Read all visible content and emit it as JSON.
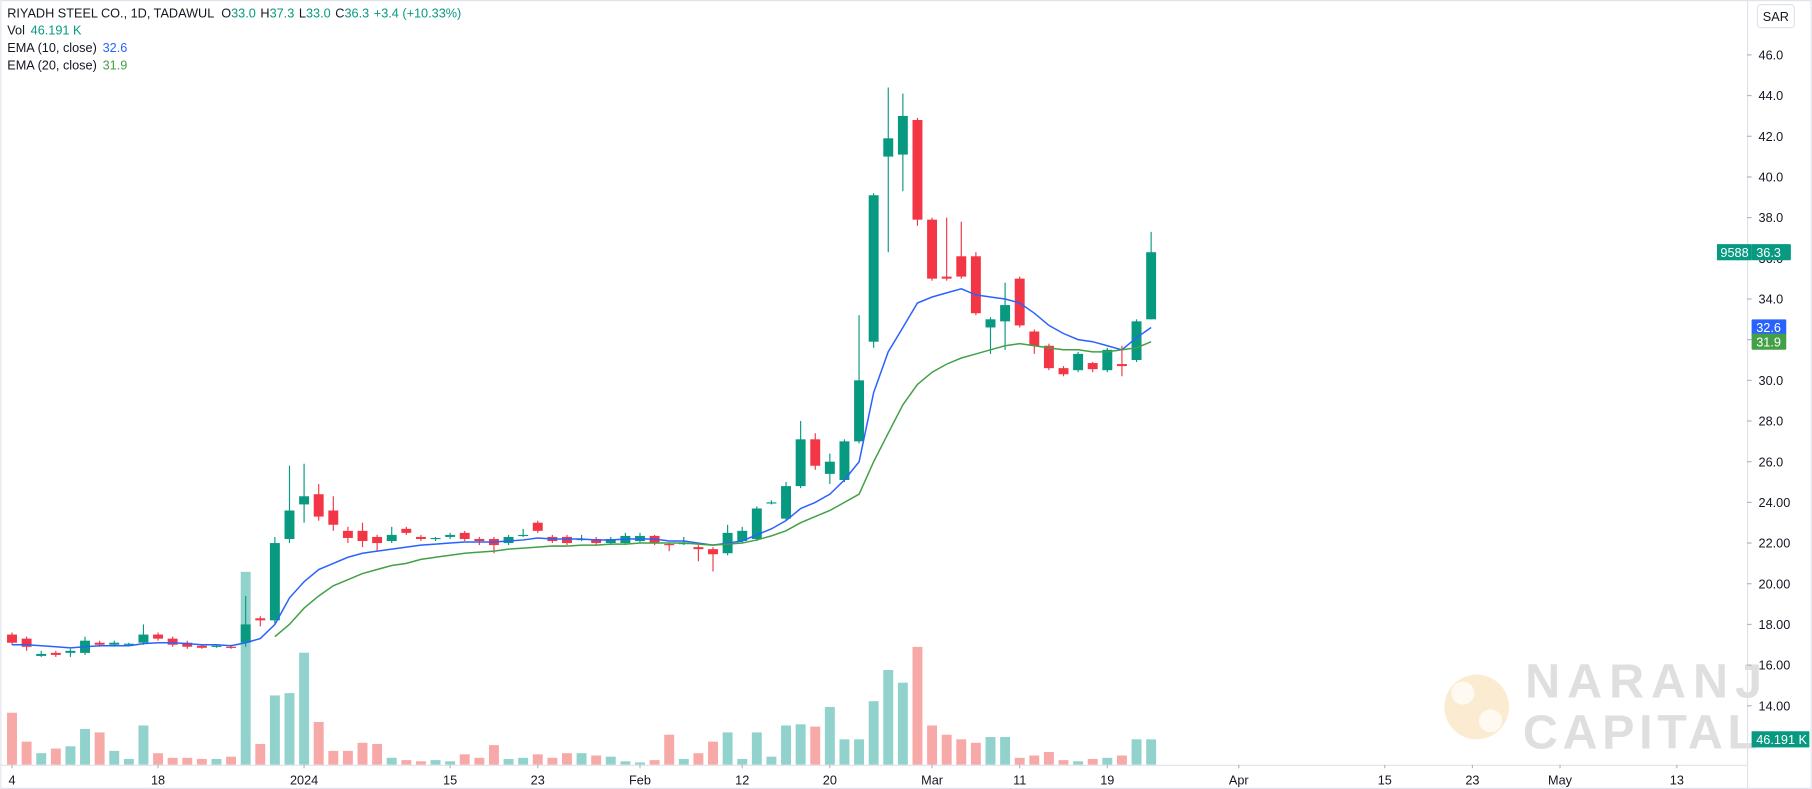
{
  "chart_data": {
    "type": "candlestick",
    "title": "RIYADH STEEL CO., 1D, TADAWUL",
    "ohlc_legend": [
      {
        "key": "O",
        "value": "33.0"
      },
      {
        "key": "H",
        "value": "37.3"
      },
      {
        "key": "L",
        "value": "33.0"
      },
      {
        "key": "C",
        "value": "36.3"
      }
    ],
    "change": "+3.4 (+10.33%)",
    "currency": "SAR",
    "symbol_code": "9588",
    "up_color": "#089981",
    "down_color": "#f23645",
    "x": [
      0,
      1,
      2,
      3,
      4,
      5,
      6,
      7,
      8,
      9,
      10,
      11,
      12,
      13,
      14,
      15,
      16,
      17,
      18,
      19,
      20,
      21,
      22,
      23,
      24,
      25,
      26,
      27,
      28,
      29,
      30,
      31,
      32,
      33,
      34,
      35,
      36,
      37,
      38,
      39,
      40,
      41,
      42,
      43,
      44,
      45,
      46,
      47,
      48,
      49,
      50,
      51,
      52,
      53,
      54,
      55,
      56,
      57,
      58,
      59,
      60,
      61,
      62,
      63,
      64,
      65,
      66,
      67,
      68,
      69,
      70,
      71,
      72,
      73,
      74,
      75,
      76,
      77,
      78
    ],
    "open": [
      17.5,
      17.3,
      16.45,
      16.6,
      16.6,
      16.6,
      17.1,
      17.0,
      17.0,
      17.1,
      17.5,
      17.3,
      17.1,
      16.95,
      16.9,
      16.9,
      17.1,
      18.3,
      18.2,
      22.2,
      23.9,
      24.4,
      23.6,
      22.6,
      22.6,
      22.3,
      22.1,
      22.7,
      22.3,
      22.2,
      22.3,
      22.5,
      22.2,
      22.2,
      22.0,
      22.35,
      23.0,
      22.3,
      22.3,
      22.15,
      22.2,
      22.0,
      22.0,
      22.1,
      22.35,
      21.95,
      21.95,
      21.8,
      21.7,
      21.5,
      22.1,
      22.2,
      23.95,
      23.2,
      24.8,
      27.1,
      25.4,
      25.1,
      27.0,
      31.9,
      41.0,
      41.1,
      42.8,
      37.9,
      35.1,
      36.1,
      36.1,
      32.6,
      32.9,
      35.0,
      32.4,
      31.7,
      30.6,
      30.5,
      30.85,
      30.5,
      30.8,
      31.0,
      33.0
    ],
    "high": [
      17.6,
      17.4,
      16.7,
      16.7,
      16.8,
      17.4,
      17.2,
      17.2,
      17.1,
      18.0,
      17.6,
      17.4,
      17.2,
      17.0,
      17.0,
      17.0,
      19.4,
      18.4,
      22.3,
      25.8,
      25.9,
      24.9,
      24.3,
      22.8,
      23.0,
      22.4,
      22.8,
      22.8,
      22.4,
      22.3,
      22.5,
      22.6,
      22.3,
      22.3,
      22.4,
      22.7,
      23.1,
      22.4,
      22.4,
      22.4,
      22.3,
      22.3,
      22.5,
      22.5,
      22.4,
      22.0,
      22.3,
      21.9,
      21.8,
      22.9,
      22.8,
      23.8,
      24.1,
      25.0,
      28.0,
      27.4,
      26.4,
      27.1,
      33.2,
      39.2,
      44.4,
      44.1,
      42.9,
      38.0,
      38.0,
      37.8,
      36.3,
      33.1,
      34.8,
      35.1,
      32.5,
      31.8,
      30.7,
      31.4,
      30.9,
      31.6,
      31.7,
      33.0,
      37.3
    ],
    "low": [
      17.0,
      16.7,
      16.4,
      16.4,
      16.4,
      16.5,
      16.9,
      16.9,
      16.95,
      17.0,
      17.2,
      16.9,
      16.8,
      16.8,
      16.85,
      16.8,
      16.9,
      17.9,
      18.0,
      22.0,
      23.0,
      23.1,
      22.6,
      22.0,
      21.8,
      21.6,
      22.0,
      22.4,
      22.1,
      22.1,
      22.2,
      22.1,
      21.9,
      21.5,
      21.9,
      22.3,
      22.5,
      22.0,
      21.9,
      22.1,
      21.9,
      21.9,
      21.9,
      22.0,
      21.9,
      21.6,
      21.9,
      21.1,
      20.6,
      21.4,
      22.0,
      22.1,
      23.9,
      23.1,
      24.7,
      25.6,
      24.9,
      25.0,
      26.9,
      31.6,
      36.3,
      39.3,
      37.6,
      34.9,
      34.9,
      35.0,
      33.2,
      31.3,
      31.5,
      32.6,
      31.3,
      30.5,
      30.2,
      30.4,
      30.4,
      30.4,
      30.2,
      30.9,
      33.0
    ],
    "close": [
      17.1,
      16.9,
      16.55,
      16.5,
      16.7,
      17.2,
      17.0,
      17.1,
      17.05,
      17.5,
      17.3,
      17.0,
      16.9,
      16.85,
      16.95,
      16.85,
      18.0,
      18.2,
      22.0,
      23.6,
      24.3,
      23.3,
      22.9,
      22.25,
      22.1,
      22.0,
      22.4,
      22.5,
      22.2,
      22.25,
      22.4,
      22.2,
      22.1,
      21.9,
      22.3,
      22.4,
      22.6,
      22.1,
      22.0,
      22.2,
      22.0,
      22.2,
      22.35,
      22.35,
      22.0,
      21.9,
      22.0,
      21.7,
      21.45,
      22.5,
      22.6,
      23.7,
      24.0,
      24.8,
      27.1,
      25.8,
      26.0,
      27.0,
      30.0,
      39.1,
      41.9,
      43.0,
      37.9,
      35.0,
      35.0,
      35.1,
      33.3,
      33.0,
      33.7,
      32.7,
      31.7,
      30.6,
      30.3,
      31.3,
      30.55,
      31.5,
      30.7,
      32.9,
      36.3
    ],
    "series": [
      {
        "name": "EMA (10, close)",
        "color": "#2962ff",
        "values": [
          17.0,
          17.0,
          16.95,
          16.9,
          16.85,
          16.9,
          16.95,
          16.95,
          16.95,
          17.05,
          17.1,
          17.1,
          17.05,
          17.0,
          17.0,
          16.95,
          17.1,
          17.3,
          18.0,
          19.3,
          20.1,
          20.7,
          21.0,
          21.3,
          21.5,
          21.6,
          21.7,
          21.8,
          21.9,
          21.95,
          22.0,
          22.05,
          22.05,
          22.05,
          22.1,
          22.15,
          22.25,
          22.2,
          22.2,
          22.2,
          22.15,
          22.15,
          22.2,
          22.2,
          22.2,
          22.1,
          22.1,
          22.0,
          21.9,
          22.0,
          22.1,
          22.4,
          22.7,
          23.1,
          23.7,
          24.0,
          24.4,
          25.1,
          26.0,
          29.4,
          31.4,
          32.6,
          33.8,
          34.1,
          34.3,
          34.5,
          34.2,
          34.1,
          34.0,
          33.8,
          33.3,
          32.7,
          32.3,
          32.0,
          31.9,
          31.7,
          31.5,
          32.1,
          32.6
        ]
      },
      {
        "name": "EMA (20, close)",
        "color": "#43a047",
        "values": [
          null,
          null,
          null,
          null,
          null,
          null,
          null,
          null,
          null,
          null,
          null,
          null,
          null,
          null,
          null,
          null,
          null,
          null,
          17.4,
          18.0,
          18.8,
          19.4,
          19.9,
          20.2,
          20.5,
          20.7,
          20.9,
          21.0,
          21.2,
          21.3,
          21.4,
          21.5,
          21.55,
          21.6,
          21.7,
          21.75,
          21.8,
          21.85,
          21.85,
          21.9,
          21.9,
          21.95,
          21.95,
          22.0,
          22.0,
          22.0,
          22.0,
          21.95,
          21.9,
          21.95,
          22.0,
          22.15,
          22.35,
          22.6,
          23.0,
          23.3,
          23.6,
          24.0,
          24.4,
          26.0,
          27.4,
          28.8,
          29.8,
          30.4,
          30.8,
          31.1,
          31.3,
          31.5,
          31.7,
          31.8,
          31.7,
          31.6,
          31.5,
          31.5,
          31.4,
          31.4,
          31.5,
          31.6,
          31.9
        ]
      }
    ],
    "volume": {
      "name": "Vol",
      "up_color": "#92d2cc",
      "down_color": "#f7a9a7",
      "ylim": [
        0,
        420
      ],
      "values": [
        94.5,
        42,
        21,
        29.4,
        33.6,
        65.1,
        58.8,
        25.2,
        10.5,
        71.4,
        21,
        12.6,
        12.6,
        10.5,
        10.5,
        14.7,
        350.7,
        37.8,
        126,
        130.2,
        203.7,
        77.7,
        25.2,
        25.2,
        39.9,
        37.8,
        12.6,
        8.4,
        6.3,
        8.4,
        6.3,
        18.9,
        12.6,
        35.7,
        10.5,
        12.6,
        18.9,
        12.6,
        21,
        21,
        16.8,
        14.7,
        6.3,
        4.2,
        8.4,
        54.6,
        10.5,
        21,
        42,
        58.8,
        10.5,
        58.8,
        14.7,
        71.4,
        73.5,
        69.3,
        105,
        46.2,
        46.2,
        115.5,
        172.2,
        149.1,
        214.2,
        71.4,
        54.6,
        46.2,
        39.9,
        50.4,
        50.4,
        12.6,
        16.8,
        23.1,
        8.4,
        6.3,
        10.5,
        12.6,
        16.8,
        46.2,
        46.191
      ],
      "last_label": "46.191 K"
    },
    "xlim": [
      -0.8,
      118.8
    ],
    "xticks": [
      {
        "value": 0,
        "label": "4"
      },
      {
        "value": 10,
        "label": "18"
      },
      {
        "value": 20,
        "label": "2024"
      },
      {
        "value": 30,
        "label": "15"
      },
      {
        "value": 36,
        "label": "23"
      },
      {
        "value": 43,
        "label": "Feb"
      },
      {
        "value": 50,
        "label": "12"
      },
      {
        "value": 56,
        "label": "20"
      },
      {
        "value": 63,
        "label": "Mar"
      },
      {
        "value": 69,
        "label": "11"
      },
      {
        "value": 75,
        "label": "19"
      },
      {
        "value": 84,
        "label": "Apr"
      },
      {
        "value": 94,
        "label": "15"
      },
      {
        "value": 100,
        "label": "23"
      },
      {
        "value": 106,
        "label": "May"
      },
      {
        "value": 114,
        "label": "13"
      }
    ],
    "ylim": [
      11.1,
      48.7
    ],
    "yticks": [
      {
        "value": 46,
        "label": "46.0"
      },
      {
        "value": 44,
        "label": "44.0"
      },
      {
        "value": 42,
        "label": "42.0"
      },
      {
        "value": 40,
        "label": "40.0"
      },
      {
        "value": 38,
        "label": "38.0"
      },
      {
        "value": 36,
        "label": "36.0"
      },
      {
        "value": 34,
        "label": "34.0"
      },
      {
        "value": 32,
        "label": "32.0"
      },
      {
        "value": 30,
        "label": "30.0"
      },
      {
        "value": 28,
        "label": "28.0"
      },
      {
        "value": 26,
        "label": "26.0"
      },
      {
        "value": 24,
        "label": "24.00"
      },
      {
        "value": 22,
        "label": "22.00"
      },
      {
        "value": 20,
        "label": "20.00"
      },
      {
        "value": 18,
        "label": "18.00"
      },
      {
        "value": 16,
        "label": "16.00"
      },
      {
        "value": 14,
        "label": "14.00"
      }
    ],
    "grid": false,
    "watermark": [
      "NARANJ",
      "CAPITAL"
    ]
  }
}
